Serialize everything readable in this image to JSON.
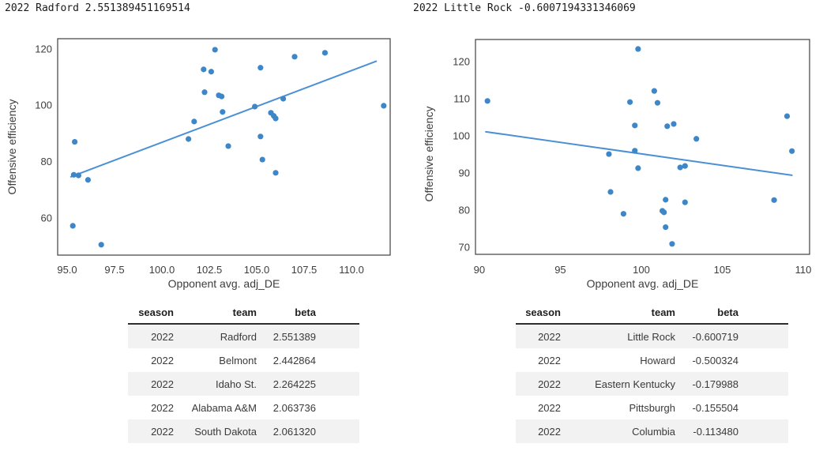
{
  "chart_data": [
    {
      "type": "scatter",
      "title": "2022 Radford 2.551389451169514",
      "xlabel": "Opponent avg. adj_DE",
      "ylabel": "Offensive efficiency",
      "xlim": [
        94.5,
        112.04
      ],
      "ylim": [
        46.8,
        123.6
      ],
      "grid": false,
      "legend": null,
      "point_color": "#3d87c8",
      "line_color": "#4a90d5",
      "border_color": "#4d4d4d",
      "x_ticks": {
        "values": [
          95,
          97.5,
          100,
          102.5,
          105,
          107.5,
          110
        ],
        "labels": [
          "95.0",
          "97.5",
          "100.0",
          "102.5",
          "105.0",
          "107.5",
          "110.0"
        ]
      },
      "y_ticks": {
        "values": [
          60,
          80,
          100,
          120
        ],
        "labels": [
          "60",
          "80",
          "100",
          "120"
        ]
      },
      "points": [
        [
          95.4,
          87.0
        ],
        [
          95.35,
          75.3
        ],
        [
          95.6,
          75.1
        ],
        [
          96.1,
          73.5
        ],
        [
          95.3,
          57.2
        ],
        [
          96.8,
          50.5
        ],
        [
          101.4,
          88.0
        ],
        [
          101.7,
          94.2
        ],
        [
          102.25,
          104.6
        ],
        [
          102.2,
          112.7
        ],
        [
          102.6,
          111.9
        ],
        [
          102.8,
          119.7
        ],
        [
          103.0,
          103.5
        ],
        [
          103.15,
          103.1
        ],
        [
          103.2,
          97.6
        ],
        [
          103.5,
          85.5
        ],
        [
          104.9,
          99.5
        ],
        [
          105.2,
          113.3
        ],
        [
          105.2,
          88.9
        ],
        [
          105.3,
          80.7
        ],
        [
          105.75,
          97.3
        ],
        [
          105.9,
          96.2
        ],
        [
          106.0,
          95.3
        ],
        [
          106.0,
          76.0
        ],
        [
          106.4,
          102.3
        ],
        [
          107.0,
          117.2
        ],
        [
          108.6,
          118.6
        ],
        [
          111.7,
          99.8
        ]
      ],
      "trend_line": [
        [
          95.2,
          74.6
        ],
        [
          111.3,
          115.6
        ]
      ]
    },
    {
      "type": "scatter",
      "title": "2022 Little Rock -0.6007194331346069",
      "xlabel": "Opponent avg. adj_DE",
      "ylabel": "Offensive efficiency",
      "xlim": [
        89.76,
        110.39
      ],
      "ylim": [
        68.09,
        125.96
      ],
      "grid": false,
      "legend": null,
      "point_color": "#3d87c8",
      "line_color": "#4a90d5",
      "border_color": "#4d4d4d",
      "x_ticks": {
        "values": [
          90,
          95,
          100,
          105,
          110
        ],
        "labels": [
          "90",
          "95",
          "100",
          "105",
          "110"
        ]
      },
      "y_ticks": {
        "values": [
          70,
          80,
          90,
          100,
          110,
          120
        ],
        "labels": [
          "70",
          "80",
          "90",
          "100",
          "110",
          "120"
        ]
      },
      "points": [
        [
          90.5,
          109.4
        ],
        [
          98.0,
          95.1
        ],
        [
          98.1,
          84.9
        ],
        [
          98.9,
          79.0
        ],
        [
          99.3,
          109.1
        ],
        [
          99.6,
          102.8
        ],
        [
          99.6,
          96.0
        ],
        [
          99.8,
          123.4
        ],
        [
          99.8,
          91.3
        ],
        [
          100.8,
          112.1
        ],
        [
          101.0,
          108.9
        ],
        [
          101.3,
          79.8
        ],
        [
          101.4,
          79.4
        ],
        [
          101.5,
          82.8
        ],
        [
          101.5,
          75.4
        ],
        [
          101.6,
          102.6
        ],
        [
          101.9,
          70.9
        ],
        [
          102.0,
          103.2
        ],
        [
          102.4,
          91.5
        ],
        [
          102.7,
          91.9
        ],
        [
          102.7,
          82.1
        ],
        [
          103.4,
          99.2
        ],
        [
          108.2,
          82.7
        ],
        [
          109.0,
          105.3
        ],
        [
          109.3,
          95.9
        ]
      ],
      "trend_line": [
        [
          90.4,
          101.1
        ],
        [
          109.3,
          89.4
        ]
      ]
    }
  ],
  "tables": [
    {
      "headers": [
        "season",
        "team",
        "beta"
      ],
      "rows": [
        [
          "2022",
          "Radford",
          "2.551389"
        ],
        [
          "2022",
          "Belmont",
          "2.442864"
        ],
        [
          "2022",
          "Idaho St.",
          "2.264225"
        ],
        [
          "2022",
          "Alabama A&M",
          "2.063736"
        ],
        [
          "2022",
          "South Dakota",
          "2.061320"
        ]
      ]
    },
    {
      "headers": [
        "season",
        "team",
        "beta"
      ],
      "rows": [
        [
          "2022",
          "Little Rock",
          "-0.600719"
        ],
        [
          "2022",
          "Howard",
          "-0.500324"
        ],
        [
          "2022",
          "Eastern Kentucky",
          "-0.179988"
        ],
        [
          "2022",
          "Pittsburgh",
          "-0.155504"
        ],
        [
          "2022",
          "Columbia",
          "-0.113480"
        ]
      ]
    }
  ]
}
